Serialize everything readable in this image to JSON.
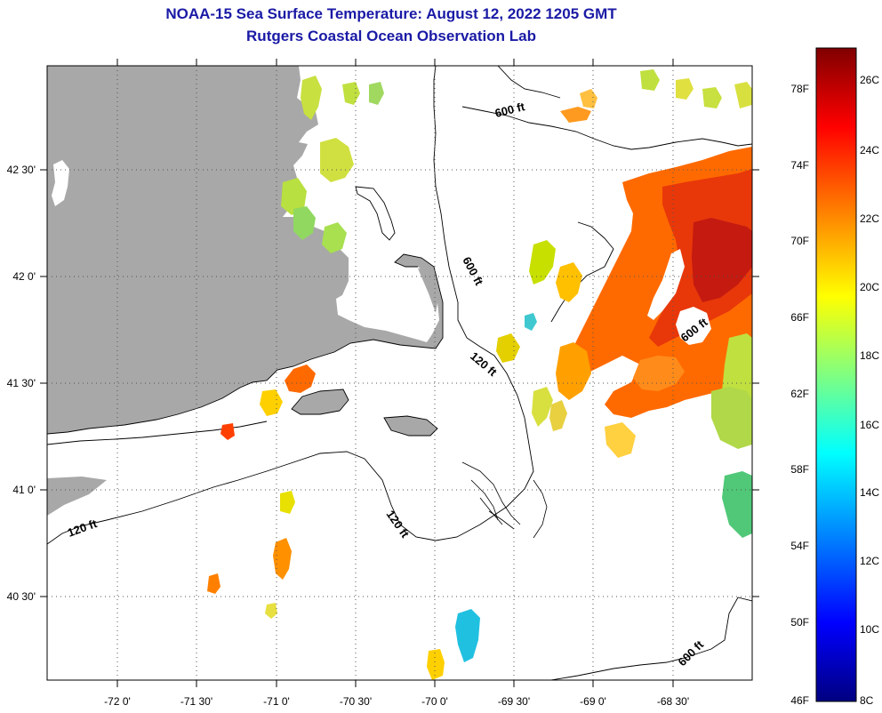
{
  "header": {
    "title": "NOAA-15 Sea Surface Temperature:  August 12, 2022 1205 GMT",
    "subtitle": "Rutgers Coastal Ocean Observation Lab"
  },
  "map": {
    "lon_ticks": [
      "-72 0'",
      "-71 30'",
      "-71 0'",
      "-70 30'",
      "-70 0'",
      "-69 30'",
      "-69 0'",
      "-68 30'"
    ],
    "lat_ticks": [
      "42 30'",
      "42 0'",
      "41 30'",
      "41 0'",
      "40 30'"
    ],
    "contour_labels": [
      "600 ft",
      "600 ft",
      "120 ft",
      "120 ft",
      "120 ft",
      "600 ft",
      "600 ft"
    ],
    "colors": {
      "land": "#a8a8a8",
      "grid": "#555555"
    }
  },
  "colorbar": {
    "fahrenheit_labels": [
      "78F",
      "74F",
      "70F",
      "66F",
      "62F",
      "58F",
      "54F",
      "50F",
      "46F"
    ],
    "celsius_labels": [
      "26C",
      "24C",
      "22C",
      "20C",
      "18C",
      "16C",
      "14C",
      "12C",
      "10C",
      "8C"
    ],
    "colors": [
      "#000080",
      "#0000ff",
      "#0080ff",
      "#00ffff",
      "#80ff80",
      "#ffff00",
      "#ff8000",
      "#ff0000",
      "#800000"
    ]
  }
}
